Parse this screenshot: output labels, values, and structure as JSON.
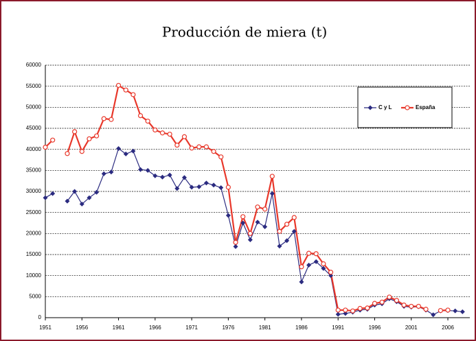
{
  "chart_data": {
    "type": "line",
    "title": "Producción de miera (t)",
    "x": [
      1951,
      1952,
      1953,
      1954,
      1955,
      1956,
      1957,
      1958,
      1959,
      1960,
      1961,
      1962,
      1963,
      1964,
      1965,
      1966,
      1967,
      1968,
      1969,
      1970,
      1971,
      1972,
      1973,
      1974,
      1975,
      1976,
      1977,
      1978,
      1979,
      1980,
      1981,
      1982,
      1983,
      1984,
      1985,
      1986,
      1987,
      1988,
      1989,
      1990,
      1991,
      1992,
      1993,
      1994,
      1995,
      1996,
      1997,
      1998,
      1999,
      2000,
      2001,
      2002,
      2003,
      2004,
      2005,
      2006,
      2007,
      2008
    ],
    "series": [
      {
        "name": "C y L",
        "color": "#2b2b80",
        "marker": "diamond",
        "values": [
          28500,
          29500,
          null,
          27700,
          30000,
          27000,
          28500,
          29800,
          34200,
          34600,
          40200,
          38900,
          39600,
          35200,
          35000,
          33700,
          33400,
          33900,
          30700,
          33300,
          31000,
          31100,
          32000,
          31500,
          30900,
          24300,
          16900,
          22500,
          18500,
          22700,
          21600,
          29500,
          17000,
          18300,
          20500,
          8500,
          12500,
          13300,
          11700,
          10000,
          800,
          1000,
          1300,
          1800,
          2000,
          3000,
          3300,
          4500,
          3800,
          2700,
          2500,
          2600,
          1800,
          700,
          1600,
          1700,
          1600,
          1400
        ]
      },
      {
        "name": "España",
        "color": "#e8372a",
        "marker": "circle",
        "values": [
          40500,
          42200,
          null,
          39000,
          44200,
          39500,
          42500,
          43200,
          47300,
          47100,
          55200,
          54100,
          53000,
          48000,
          46700,
          44600,
          43900,
          43600,
          41000,
          43000,
          40300,
          40600,
          40600,
          39500,
          38200,
          31000,
          17900,
          24000,
          20000,
          26300,
          25800,
          33600,
          20500,
          22200,
          23800,
          12100,
          15300,
          15200,
          12800,
          10800,
          1800,
          1800,
          1600,
          2200,
          2300,
          3400,
          3700,
          4900,
          4100,
          3000,
          2700,
          2700,
          2000,
          null,
          1700,
          1800,
          null,
          null
        ]
      }
    ],
    "xlim": [
      1951,
      2009
    ],
    "xticks": [
      1951,
      1956,
      1961,
      1966,
      1971,
      1976,
      1981,
      1986,
      1991,
      1996,
      2001,
      2006
    ],
    "ylim": [
      0,
      60000
    ],
    "yticks": [
      0,
      5000,
      10000,
      15000,
      20000,
      25000,
      30000,
      35000,
      40000,
      45000,
      50000,
      55000,
      60000
    ],
    "grid": true,
    "legend": "upper right"
  }
}
